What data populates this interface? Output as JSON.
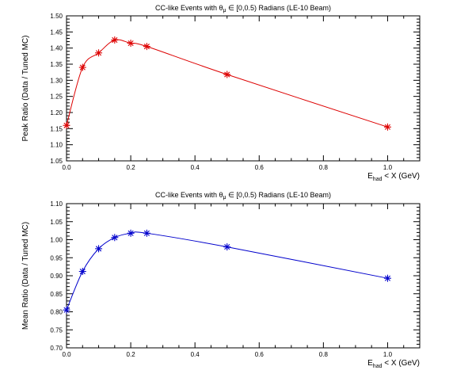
{
  "chart_data": [
    {
      "type": "line",
      "title": {
        "prefix": "CC-like Events with ",
        "theta": "θ",
        "theta_sub": "μ",
        "suffix": " ∈ [0,0.5) Radians (LE-10 Beam)"
      },
      "ylabel": "Peak Ratio (Data / Tuned MC)",
      "xlabel": {
        "E": "E",
        "sub": "had",
        "rest": " < X (GeV)"
      },
      "xlim": [
        0,
        1.1
      ],
      "ylim": [
        1.05,
        1.5
      ],
      "xticks": [
        0,
        0.2,
        0.4,
        0.6,
        0.8,
        1
      ],
      "xtick_labels": [
        "0.0",
        "0.2",
        "0.4",
        "0.6",
        "0.8",
        "1.0"
      ],
      "yticks": [
        1.05,
        1.1,
        1.15,
        1.2,
        1.25,
        1.3,
        1.35,
        1.4,
        1.45,
        1.5
      ],
      "ytick_labels": [
        "1.05",
        "1.10",
        "1.15",
        "1.20",
        "1.25",
        "1.30",
        "1.35",
        "1.40",
        "1.45",
        "1.50"
      ],
      "color": "#dd0000",
      "marker": "*",
      "x": [
        0.0,
        0.05,
        0.1,
        0.15,
        0.2,
        0.25,
        0.5,
        1.0
      ],
      "y": [
        1.16,
        1.34,
        1.385,
        1.425,
        1.415,
        1.405,
        1.318,
        1.155
      ]
    },
    {
      "type": "line",
      "title": {
        "prefix": "CC-like Events with ",
        "theta": "θ",
        "theta_sub": "μ",
        "suffix": " ∈ [0,0.5) Radians (LE-10 Beam)"
      },
      "ylabel": "Mean Ratio (Data / Tuned MC)",
      "xlabel": {
        "E": "E",
        "sub": "had",
        "rest": " < X (GeV)"
      },
      "xlim": [
        0,
        1.1
      ],
      "ylim": [
        0.7,
        1.1
      ],
      "xticks": [
        0,
        0.2,
        0.4,
        0.6,
        0.8,
        1
      ],
      "xtick_labels": [
        "0.0",
        "0.2",
        "0.4",
        "0.6",
        "0.8",
        "1.0"
      ],
      "yticks": [
        0.7,
        0.75,
        0.8,
        0.85,
        0.9,
        0.95,
        1.0,
        1.05,
        1.1
      ],
      "ytick_labels": [
        "0.70",
        "0.75",
        "0.80",
        "0.85",
        "0.90",
        "0.95",
        "1.00",
        "1.05",
        "1.10"
      ],
      "color": "#0000cc",
      "marker": "*",
      "x": [
        0.0,
        0.05,
        0.1,
        0.15,
        0.2,
        0.25,
        0.5,
        1.0
      ],
      "y": [
        0.805,
        0.912,
        0.975,
        1.006,
        1.018,
        1.018,
        0.98,
        0.893
      ]
    }
  ]
}
